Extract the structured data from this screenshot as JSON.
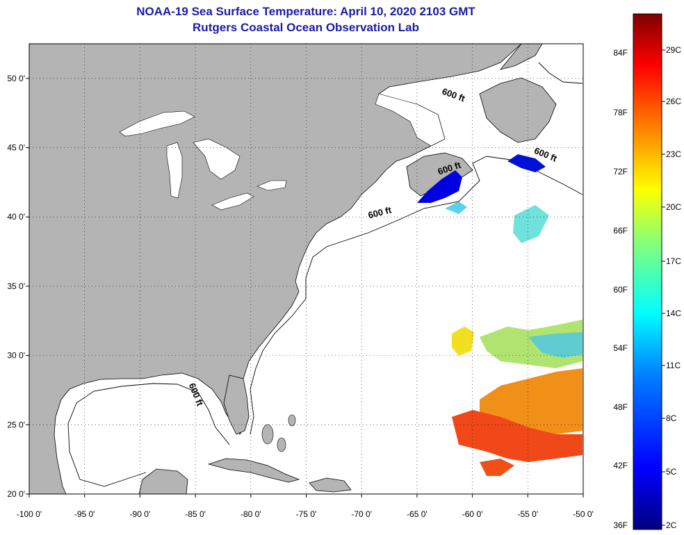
{
  "title": {
    "line1": "NOAA-19 Sea Surface Temperature:  April 10, 2020 2103 GMT",
    "line2": "Rutgers Coastal Ocean Observation Lab"
  },
  "map": {
    "lon_range": [
      -100,
      -50
    ],
    "lat_range": [
      20,
      52.5
    ],
    "lon_ticks": [
      {
        "value": -100,
        "label": "-100 0'"
      },
      {
        "value": -95,
        "label": "-95 0'"
      },
      {
        "value": -90,
        "label": "-90 0'"
      },
      {
        "value": -85,
        "label": "-85 0'"
      },
      {
        "value": -80,
        "label": "-80 0'"
      },
      {
        "value": -75,
        "label": "-75 0'"
      },
      {
        "value": -70,
        "label": "-70 0'"
      },
      {
        "value": -65,
        "label": "-65 0'"
      },
      {
        "value": -60,
        "label": "-60 0'"
      },
      {
        "value": -55,
        "label": "-55 0'"
      },
      {
        "value": -50,
        "label": "-50 0'"
      }
    ],
    "lat_ticks": [
      {
        "value": 50,
        "label": "50 0'"
      },
      {
        "value": 45,
        "label": "45 0'"
      },
      {
        "value": 40,
        "label": "40 0'"
      },
      {
        "value": 35,
        "label": "35 0'"
      },
      {
        "value": 30,
        "label": "30 0'"
      },
      {
        "value": 25,
        "label": "25 0'"
      },
      {
        "value": 20,
        "label": "20 0'"
      }
    ],
    "grid": true,
    "land_color": "#b4b4b4",
    "ocean_color": "#ffffff",
    "contour_labels": [
      {
        "text": "600 ft",
        "lon": -61.8,
        "lat": 48.6,
        "angle": 20
      },
      {
        "text": "600 ft",
        "lon": -53.5,
        "lat": 44.3,
        "angle": 22
      },
      {
        "text": "600 ft",
        "lon": -62.0,
        "lat": 43.3,
        "angle": -18
      },
      {
        "text": "600 ft",
        "lon": -68.3,
        "lat": 40.1,
        "angle": -14
      },
      {
        "text": "600 ft",
        "lon": -85.2,
        "lat": 27.1,
        "angle": 68
      }
    ]
  },
  "colorbar": {
    "gradient": [
      "#00007f",
      "#0000ff",
      "#0080ff",
      "#00ffff",
      "#80ff80",
      "#ffff00",
      "#ff8000",
      "#ff0000",
      "#7f0000"
    ],
    "fahrenheit_labels": [
      "84F",
      "78F",
      "72F",
      "66F",
      "60F",
      "54F",
      "48F",
      "42F",
      "36F"
    ],
    "celsius_labels": [
      "29C",
      "26C",
      "23C",
      "20C",
      "17C",
      "14C",
      "11C",
      "8C",
      "5C",
      "2C"
    ]
  }
}
